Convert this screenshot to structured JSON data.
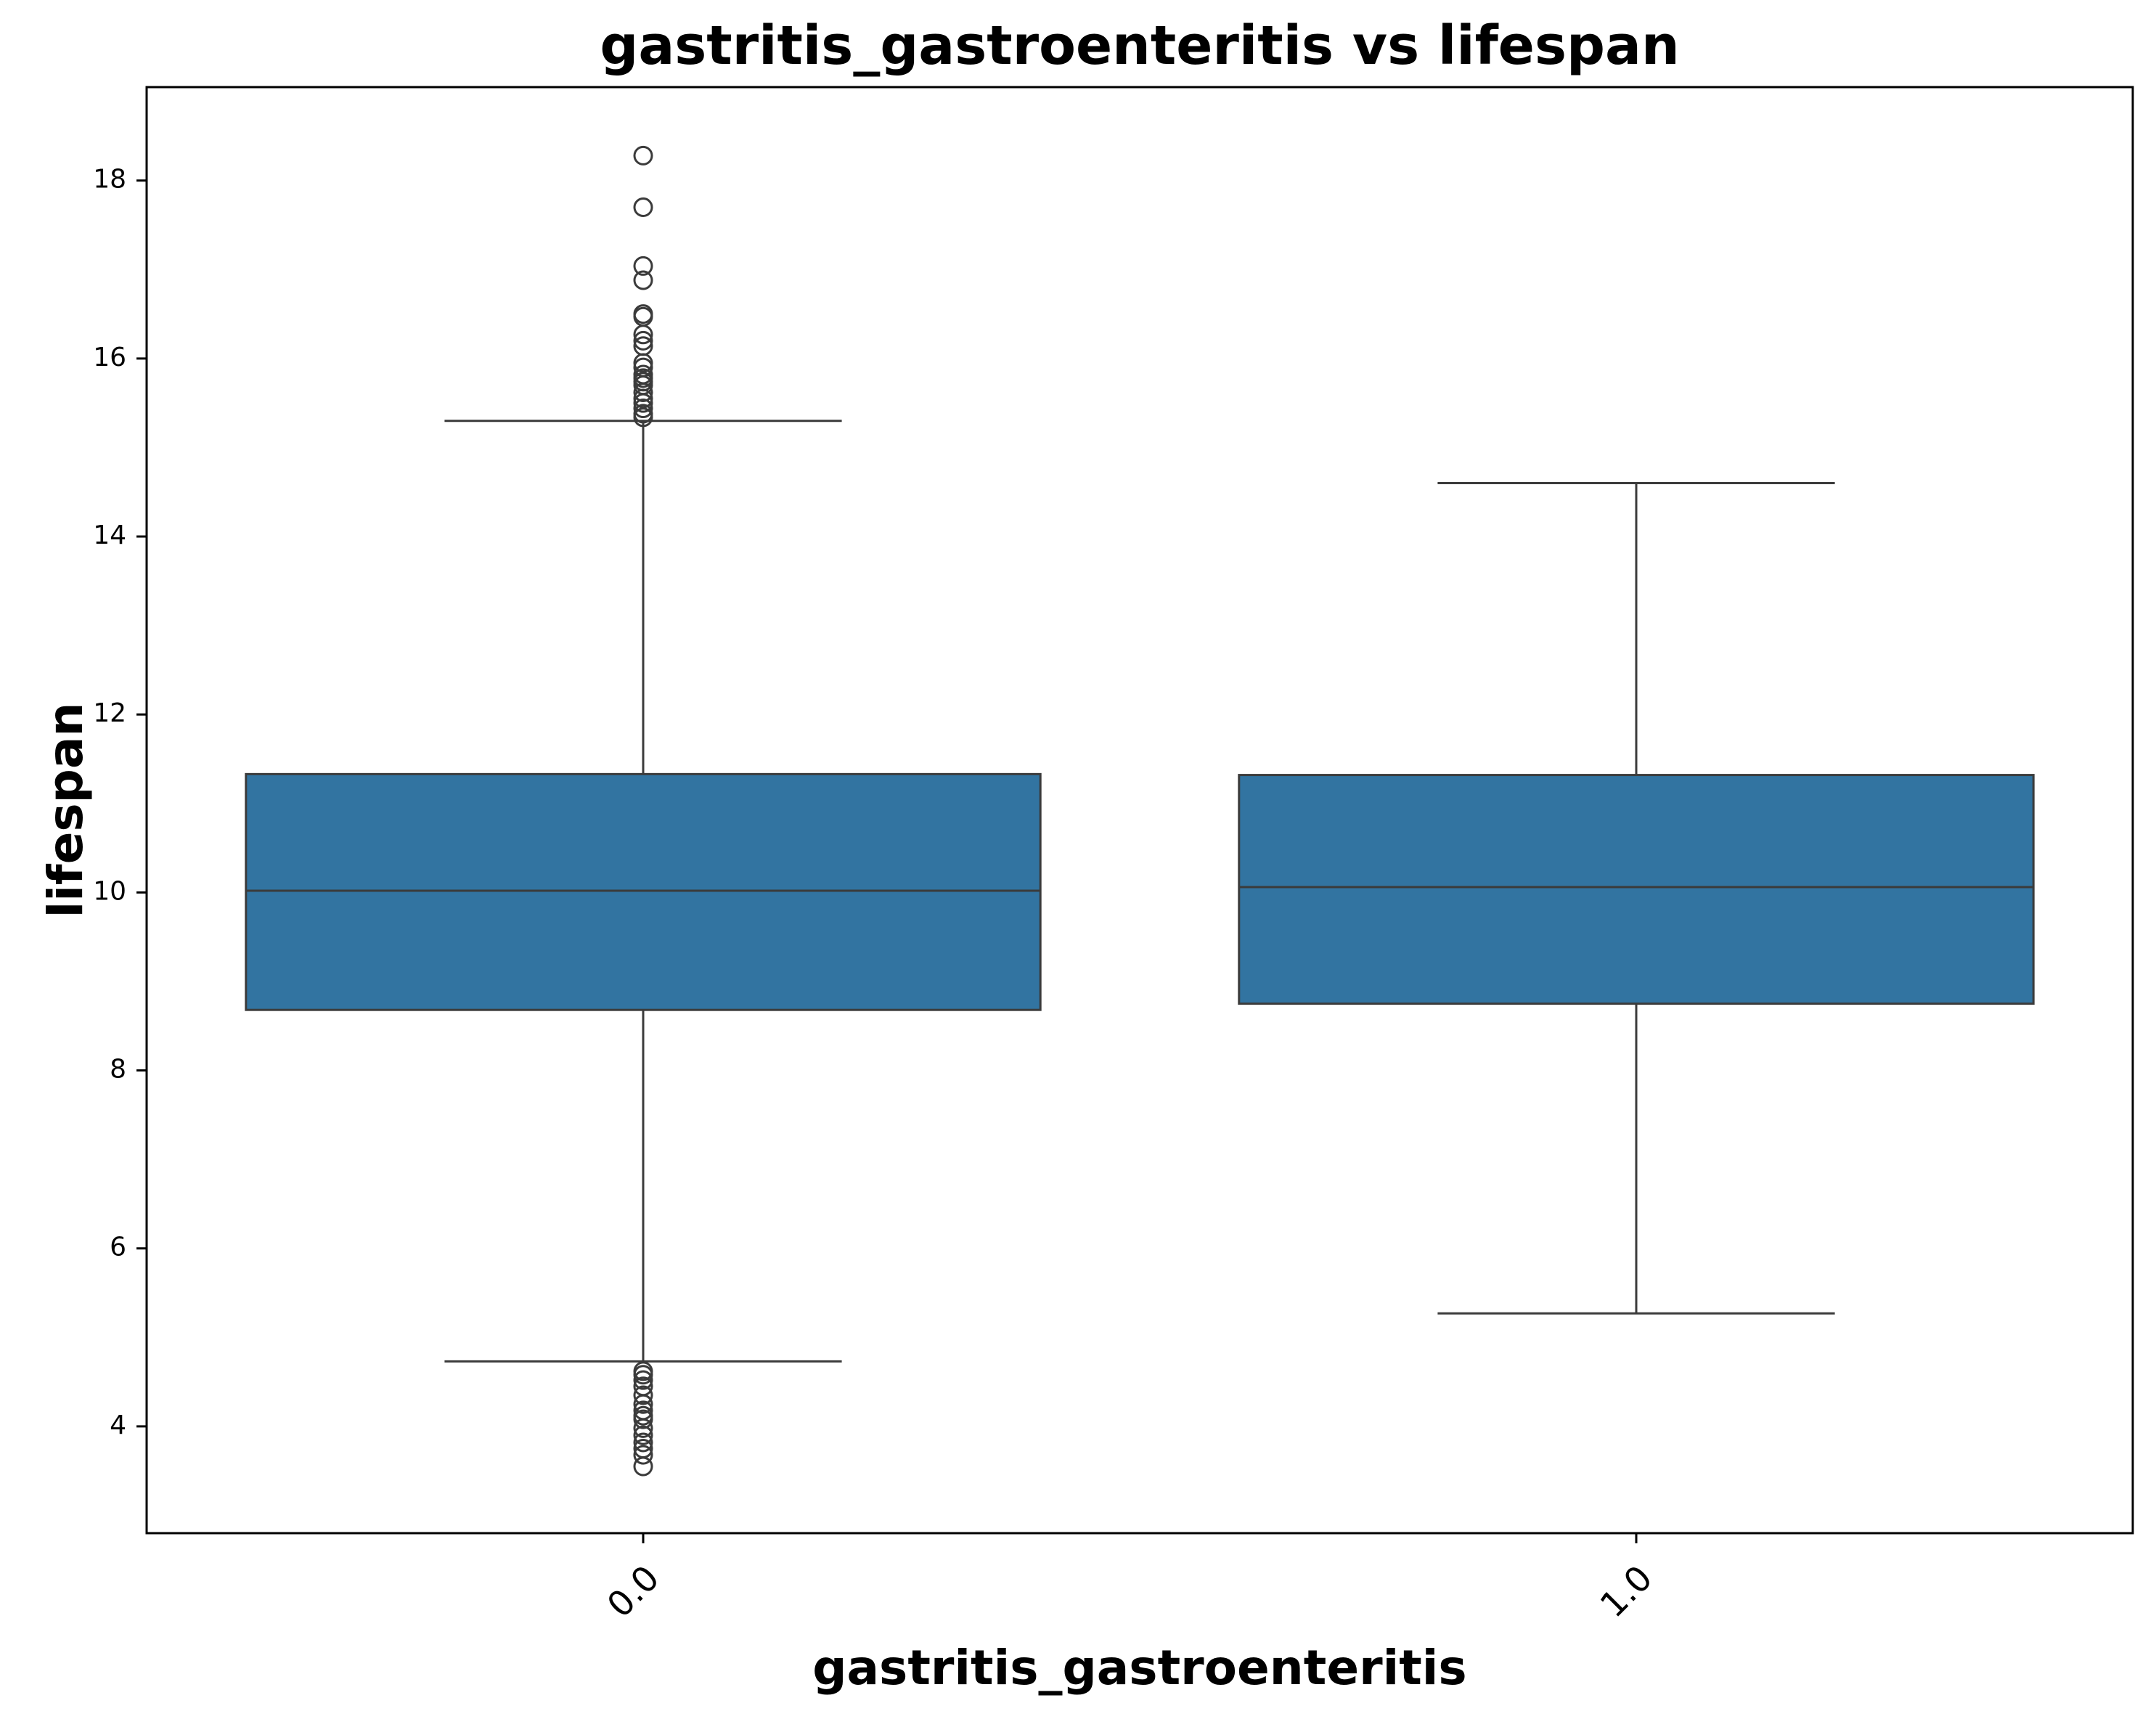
{
  "chart_data": {
    "type": "box",
    "title": "gastritis_gastroenteritis vs lifespan",
    "xlabel": "gastritis_gastroenteritis",
    "ylabel": "lifespan",
    "categories": [
      "0.0",
      "1.0"
    ],
    "ylim": [
      2.8,
      19.05
    ],
    "yticks": [
      4,
      6,
      8,
      10,
      12,
      14,
      16,
      18
    ],
    "grid": false,
    "legend": "none",
    "box_color": "#3274a1",
    "line_color": "#3b3b3b",
    "boxes": [
      {
        "category": "0.0",
        "whisker_low": 4.73,
        "q1": 8.68,
        "median": 10.02,
        "q3": 11.33,
        "whisker_high": 15.3,
        "outliers": [
          18.28,
          17.7,
          17.04,
          16.88,
          16.5,
          16.47,
          16.27,
          16.2,
          16.14,
          15.95,
          15.9,
          15.82,
          15.78,
          15.74,
          15.7,
          15.62,
          15.55,
          15.5,
          15.44,
          15.38,
          15.34,
          4.62,
          4.58,
          4.52,
          4.45,
          4.35,
          4.25,
          4.18,
          4.12,
          4.08,
          3.98,
          3.9,
          3.82,
          3.75,
          3.68,
          3.55
        ]
      },
      {
        "category": "1.0",
        "whisker_low": 5.27,
        "q1": 8.75,
        "median": 10.06,
        "q3": 11.32,
        "whisker_high": 14.6,
        "outliers": []
      }
    ]
  }
}
